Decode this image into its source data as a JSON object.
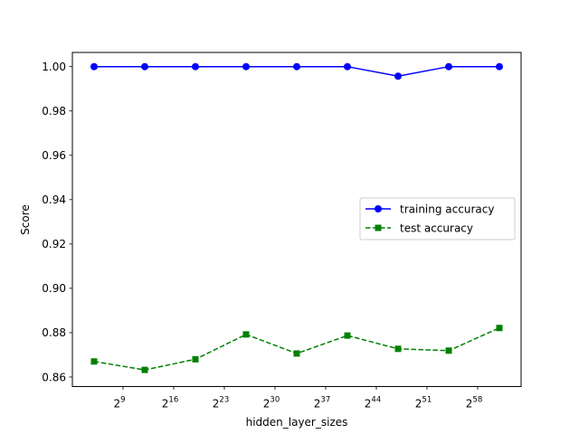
{
  "chart_data": {
    "type": "line",
    "title": "",
    "xlabel": "hidden_layer_sizes",
    "ylabel": "Score",
    "x_scale": "log2",
    "x": [
      32,
      4096,
      524288,
      67108864,
      8589934592,
      1099511627776,
      140737488355328,
      18014398509481984,
      2305843009213693952
    ],
    "xlim": [
      4,
      1.8446744073709552e+19
    ],
    "ylim": [
      0.8557,
      1.0064
    ],
    "grid": false,
    "legend_position": "center-right",
    "xticks": [
      {
        "base": "2",
        "exp": "9",
        "value": 512
      },
      {
        "base": "2",
        "exp": "16",
        "value": 65536
      },
      {
        "base": "2",
        "exp": "23",
        "value": 8388608
      },
      {
        "base": "2",
        "exp": "30",
        "value": 1073741824
      },
      {
        "base": "2",
        "exp": "37",
        "value": 137438953472
      },
      {
        "base": "2",
        "exp": "44",
        "value": 17592186044416
      },
      {
        "base": "2",
        "exp": "51",
        "value": 2251799813685248
      },
      {
        "base": "2",
        "exp": "58",
        "value": 288230376151711744
      }
    ],
    "yticks": [
      {
        "label": "0.86",
        "value": 0.86
      },
      {
        "label": "0.88",
        "value": 0.88
      },
      {
        "label": "0.90",
        "value": 0.9
      },
      {
        "label": "0.92",
        "value": 0.92
      },
      {
        "label": "0.94",
        "value": 0.94
      },
      {
        "label": "0.96",
        "value": 0.96
      },
      {
        "label": "0.98",
        "value": 0.98
      },
      {
        "label": "1.00",
        "value": 1.0
      }
    ],
    "series": [
      {
        "name": "training accuracy",
        "values": [
          1.0,
          1.0,
          1.0,
          1.0,
          1.0,
          1.0,
          0.9957,
          1.0,
          1.0
        ],
        "color": "#0000ff",
        "linestyle": "solid",
        "marker": "circle"
      },
      {
        "name": "test accuracy",
        "values": [
          0.867,
          0.8632,
          0.868,
          0.8792,
          0.8706,
          0.8787,
          0.8727,
          0.8719,
          0.8821
        ],
        "color": "#008000",
        "linestyle": "dashed",
        "marker": "square"
      }
    ]
  }
}
